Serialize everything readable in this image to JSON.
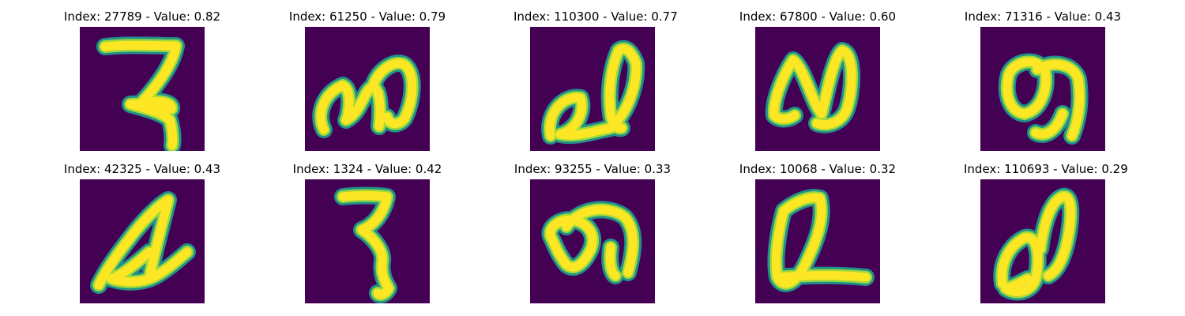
{
  "colors": {
    "background": "#440154",
    "stroke_core": "#fde725",
    "stroke_mid": "#9fda3a",
    "stroke_edge": "#21918c"
  },
  "panels": [
    {
      "title": "Index: 27789 - Value: 0.82",
      "glyph": "ra-like"
    },
    {
      "title": "Index: 61250 - Value: 0.79",
      "glyph": "ma-like"
    },
    {
      "title": "Index: 110300 - Value: 0.77",
      "glyph": "loop-a"
    },
    {
      "title": "Index: 67800 - Value: 0.60",
      "glyph": "wave-n"
    },
    {
      "title": "Index: 71316 - Value: 0.43",
      "glyph": "loop-9"
    },
    {
      "title": "Index: 42325 - Value: 0.43",
      "glyph": "triangle-a"
    },
    {
      "title": "Index: 1324 - Value: 0.42",
      "glyph": "bold-ra"
    },
    {
      "title": "Index: 93255 - Value: 0.33",
      "glyph": "loop-ma"
    },
    {
      "title": "Index: 10068 - Value: 0.32",
      "glyph": "loop-l"
    },
    {
      "title": "Index: 110693 - Value: 0.29",
      "glyph": "loop-d"
    }
  ]
}
